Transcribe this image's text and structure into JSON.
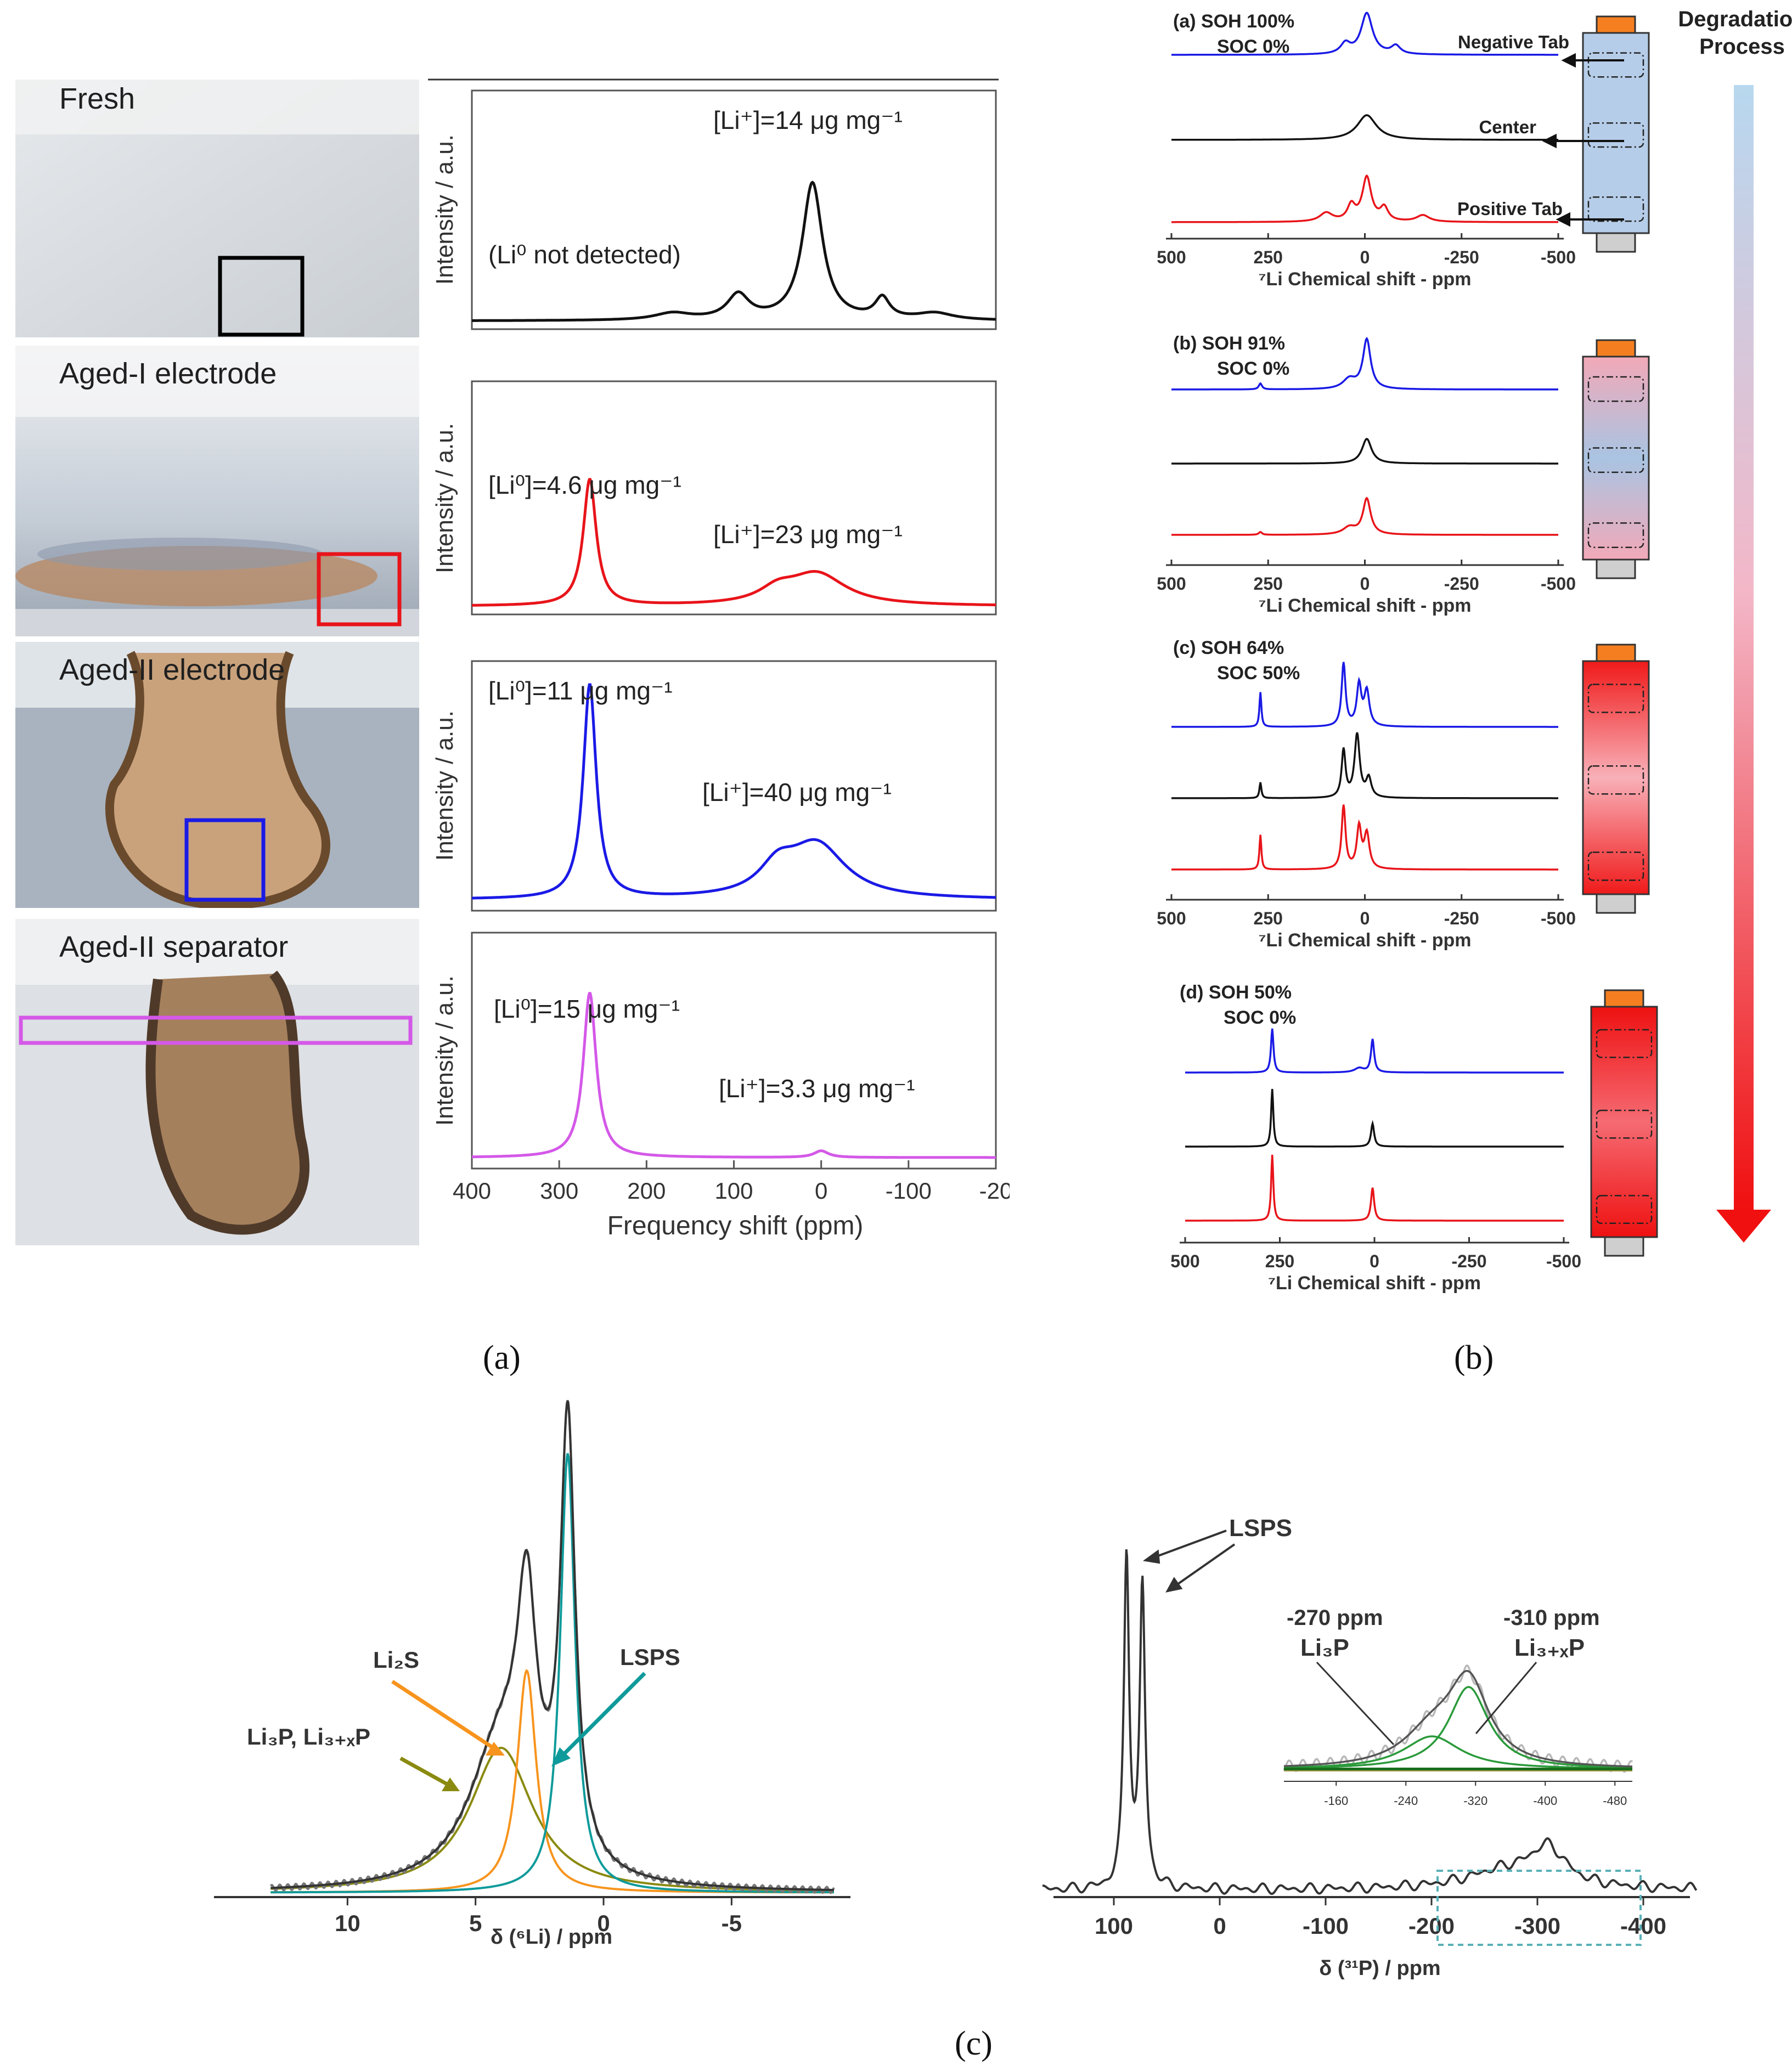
{
  "panel_a": {
    "photos": [
      {
        "label": "Fresh",
        "frame_color": "#000000"
      },
      {
        "label": "Aged-I electrode",
        "frame_color": "#e8141a"
      },
      {
        "label": "Aged-II electrode",
        "frame_color": "#1a1ae6"
      },
      {
        "label": "Aged-II separator",
        "frame_color": "#d458e8"
      }
    ],
    "ylabel": "Intensity / a.u.",
    "xlabel": "Frequency shift (ppm)",
    "xticks": [
      "400",
      "300",
      "200",
      "100",
      "0",
      "-100",
      "-20"
    ],
    "annotations": {
      "fresh_li_plus": "[Li⁺]=14 μg mg⁻¹",
      "fresh_li0": "(Li⁰ not detected)",
      "aged1_li0": "[Li⁰]=4.6 μg mg⁻¹",
      "aged1_li_plus": "[Li⁺]=23 μg mg⁻¹",
      "aged2_li0": "[Li⁰]=11 μg mg⁻¹",
      "aged2_li_plus": "[Li⁺]=40 μg mg⁻¹",
      "sep_li0": "[Li⁰]=15 μg mg⁻¹",
      "sep_li_plus": "[Li⁺]=3.3 μg mg⁻¹"
    },
    "caption": "(a)"
  },
  "panel_b": {
    "degradation_title_1": "Degradation",
    "degradation_title_2": "Process",
    "xlabel": "⁷Li Chemical shift - ppm",
    "xticks": [
      "500",
      "250",
      "0",
      "-250",
      "-500"
    ],
    "subpanels": [
      {
        "tag": "(a)  SOH 100%",
        "soc": "SOC  0%"
      },
      {
        "tag": "(b)  SOH 91%",
        "soc": "SOC  0%"
      },
      {
        "tag": "(c)  SOH 64%",
        "soc": "SOC 50%"
      },
      {
        "tag": "(d)  SOH 50%",
        "soc": "SOC 0%"
      }
    ],
    "position_labels": {
      "negative": "Negative Tab",
      "center": "Center",
      "positive": "Positive Tab"
    },
    "caption": "(b)"
  },
  "panel_c": {
    "left": {
      "xlabel": "δ (⁶Li) / ppm",
      "xticks": [
        "10",
        "5",
        "0",
        "-5"
      ],
      "labels": {
        "li2s": "Li₂S",
        "lsps": "LSPS",
        "li3p": "Li₃P, Li₃₊ₓP"
      }
    },
    "right": {
      "xlabel": "δ (³¹P) / ppm",
      "xticks": [
        "100",
        "0",
        "-100",
        "-200",
        "-300",
        "-400"
      ],
      "labels": {
        "lsps": "LSPS",
        "ppm270": "-270 ppm",
        "ppm310": "-310 ppm",
        "li3p": "Li₃P",
        "li3xp": "Li₃₊ₓP"
      },
      "inset_xticks": [
        "-160",
        "-240",
        "-320",
        "-400",
        "-480"
      ]
    },
    "caption": "(c)"
  },
  "colors": {
    "black": "#111111",
    "red": "#e8141a",
    "blue": "#1a1ae6",
    "magenta": "#d458e8",
    "orange": "#f7941d",
    "teal": "#0e9a9a",
    "olive": "#8a8a10",
    "green": "#1a9a3a",
    "gray": "#444444"
  }
}
